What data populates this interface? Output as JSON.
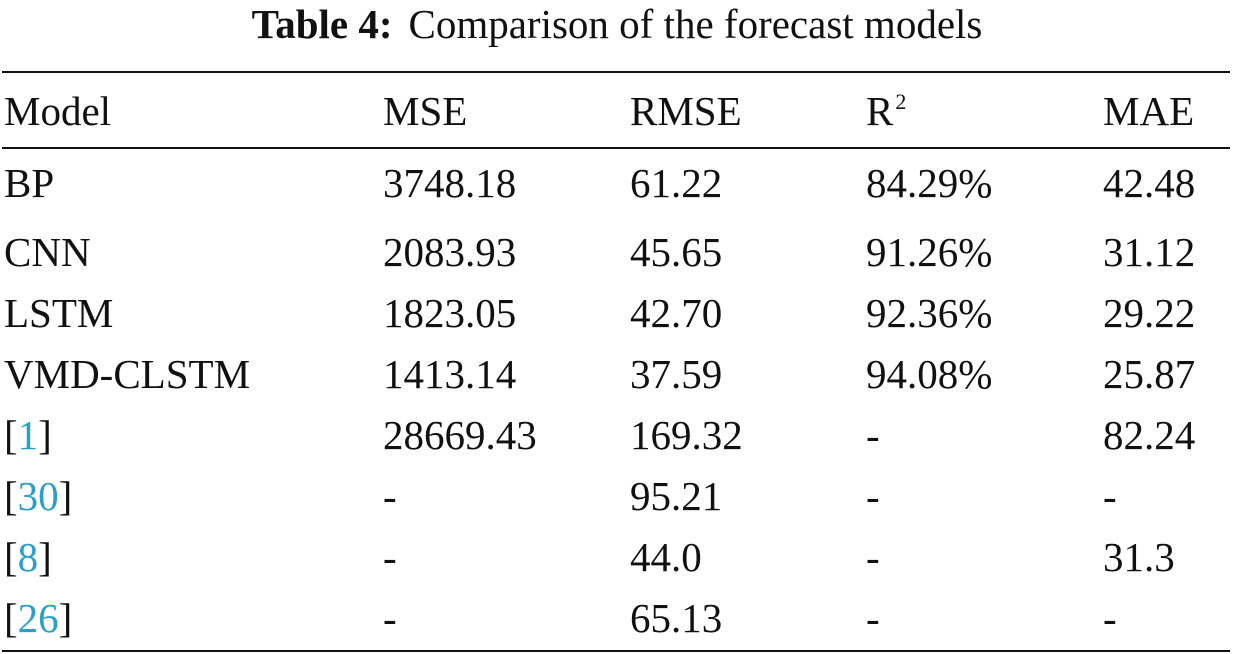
{
  "caption": {
    "label": "Table 4:",
    "text": "Comparison of the forecast models"
  },
  "table": {
    "headers": [
      "Model",
      "MSE",
      "RMSE",
      "R",
      "MAE"
    ],
    "header_superscript": "2",
    "rows": [
      {
        "model": "BP",
        "ref": false,
        "mse": "3748.18",
        "rmse": "61.22",
        "r2": "84.29%",
        "mae": "42.48"
      },
      {
        "model": "CNN",
        "ref": false,
        "mse": "2083.93",
        "rmse": "45.65",
        "r2": "91.26%",
        "mae": "31.12"
      },
      {
        "model": "LSTM",
        "ref": false,
        "mse": "1823.05",
        "rmse": "42.70",
        "r2": "92.36%",
        "mae": "29.22"
      },
      {
        "model": "VMD-CLSTM",
        "ref": false,
        "mse": "1413.14",
        "rmse": "37.59",
        "r2": "94.08%",
        "mae": "25.87"
      },
      {
        "model": "1",
        "ref": true,
        "mse": "28669.43",
        "rmse": "169.32",
        "r2": "-",
        "mae": "82.24"
      },
      {
        "model": "30",
        "ref": true,
        "mse": "-",
        "rmse": "95.21",
        "r2": "-",
        "mae": "-"
      },
      {
        "model": "8",
        "ref": true,
        "mse": "-",
        "rmse": "44.0",
        "r2": "-",
        "mae": "31.3"
      },
      {
        "model": "26",
        "ref": true,
        "mse": "-",
        "rmse": "65.13",
        "r2": "-",
        "mae": "-"
      }
    ]
  },
  "colors": {
    "text": "#111111",
    "citation_link": "#2b9fc9"
  }
}
